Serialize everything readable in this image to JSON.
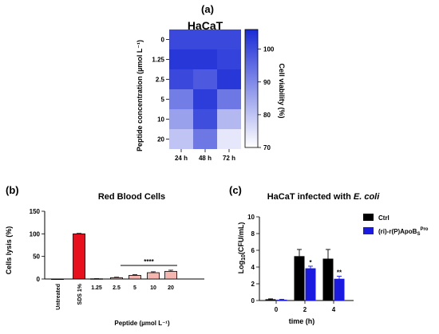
{
  "figure": {
    "panel_a_label": "(a)",
    "panel_b_label": "(b)",
    "panel_c_label": "(c)"
  },
  "chart_data": [
    {
      "type": "heatmap",
      "title": "HaCaT",
      "ylabel": "Peptide concentration (µmol L⁻¹)",
      "colorbar_label": "Cell viability (%)",
      "columns": [
        "24 h",
        "48 h",
        "72 h"
      ],
      "rows": [
        "0",
        "1.25",
        "2.5",
        "5",
        "10",
        "20"
      ],
      "values": [
        [
          101,
          101,
          101
        ],
        [
          104,
          104,
          102
        ],
        [
          101,
          98,
          104
        ],
        [
          92,
          103,
          93
        ],
        [
          86,
          100,
          82
        ],
        [
          80,
          93,
          74
        ]
      ],
      "colorbar_range": [
        70,
        106
      ],
      "colorbar_ticks": [
        "70",
        "80",
        "90",
        "100"
      ],
      "colors": {
        "low": "#ffffff",
        "high": "#1a2bd6"
      }
    },
    {
      "type": "bar",
      "title": "Red Blood Cells",
      "ylabel": "Cells lysis (%)",
      "xlabel": "Peptide (µmol L⁻¹)",
      "categories": [
        "Untreated",
        "SDS 1%",
        "1.25",
        "2.5",
        "5",
        "10",
        "20"
      ],
      "values": [
        0,
        100,
        0.5,
        3,
        8,
        14,
        17
      ],
      "errors": [
        0,
        1,
        0.3,
        1,
        1.5,
        2,
        2.5
      ],
      "ylim": [
        0,
        150
      ],
      "yticks": [
        "0",
        "50",
        "100",
        "150"
      ],
      "significance": "****",
      "colors": {
        "sds": "#e8101c",
        "peptide": "#f6b6b0",
        "untreated": "#ffffff"
      }
    },
    {
      "type": "bar",
      "title_prefix": "HaCaT infected with ",
      "title_species": "E. coli",
      "ylabel_base": "Log",
      "ylabel_sub": "10",
      "ylabel_rest": "(CFU/mL)",
      "xlabel": "time (h)",
      "categories": [
        "0",
        "2",
        "4"
      ],
      "series": [
        {
          "name": "Ctrl",
          "values": [
            0.15,
            5.3,
            5.0
          ],
          "errors": [
            0.05,
            0.8,
            1.1
          ]
        },
        {
          "name_main": "(ri)-r(P)ApoB",
          "name_sub": "S",
          "name_sup": "Pro",
          "values": [
            0.1,
            3.85,
            2.6
          ],
          "errors": [
            0.05,
            0.25,
            0.3
          ]
        }
      ],
      "significance": [
        "",
        "*",
        "**"
      ],
      "ylim": [
        0,
        10
      ],
      "yticks": [
        "0",
        "2",
        "4",
        "6",
        "8",
        "10"
      ],
      "colors": {
        "ctrl": "#000000",
        "peptide": "#1a1ae0"
      }
    }
  ]
}
